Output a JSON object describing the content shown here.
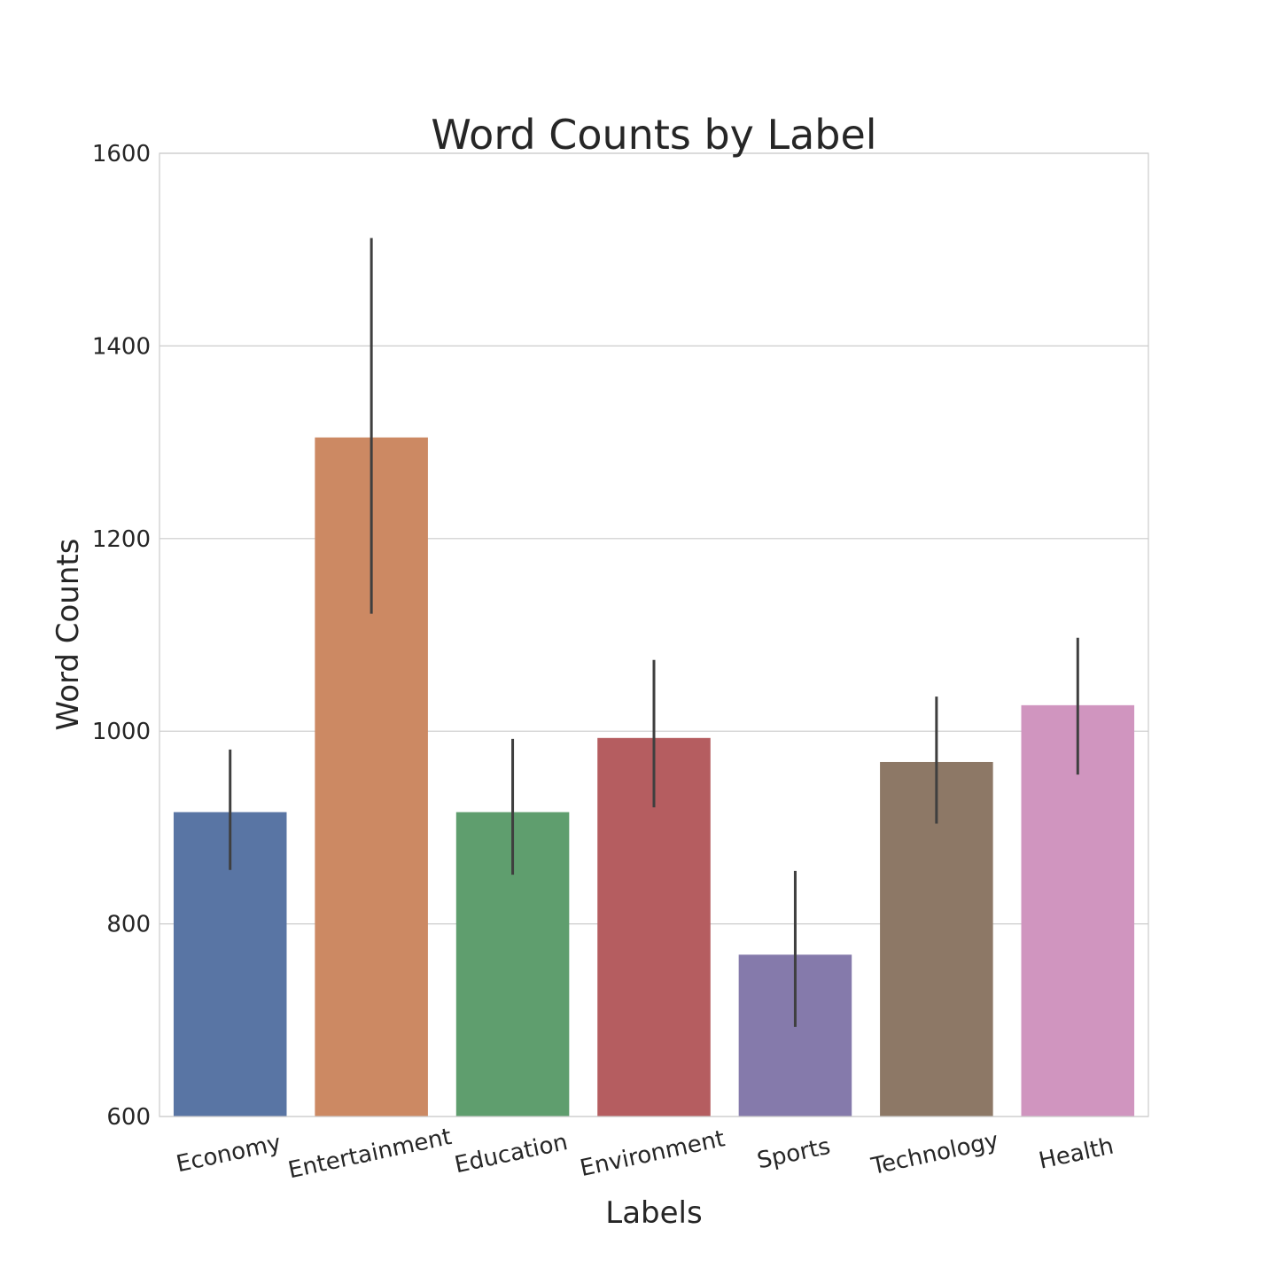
{
  "chart_data": {
    "type": "bar",
    "title": "Word Counts by Label",
    "xlabel": "Labels",
    "ylabel": "Word Counts",
    "ylim": [
      600,
      1600
    ],
    "yticks": [
      600,
      800,
      1000,
      1200,
      1400,
      1600
    ],
    "grid": "horizontal",
    "categories": [
      "Economy",
      "Entertainment",
      "Education",
      "Environment",
      "Sports",
      "Technology",
      "Health"
    ],
    "values": [
      916,
      1305,
      916,
      993,
      768,
      968,
      1027
    ],
    "error_low": [
      856,
      1122,
      851,
      921,
      693,
      904,
      955
    ],
    "error_high": [
      981,
      1512,
      992,
      1074,
      855,
      1036,
      1097
    ],
    "colors": [
      "#5975a4",
      "#cc8963",
      "#5f9e6e",
      "#b55d60",
      "#857aab",
      "#8d7866",
      "#d095bf"
    ]
  }
}
